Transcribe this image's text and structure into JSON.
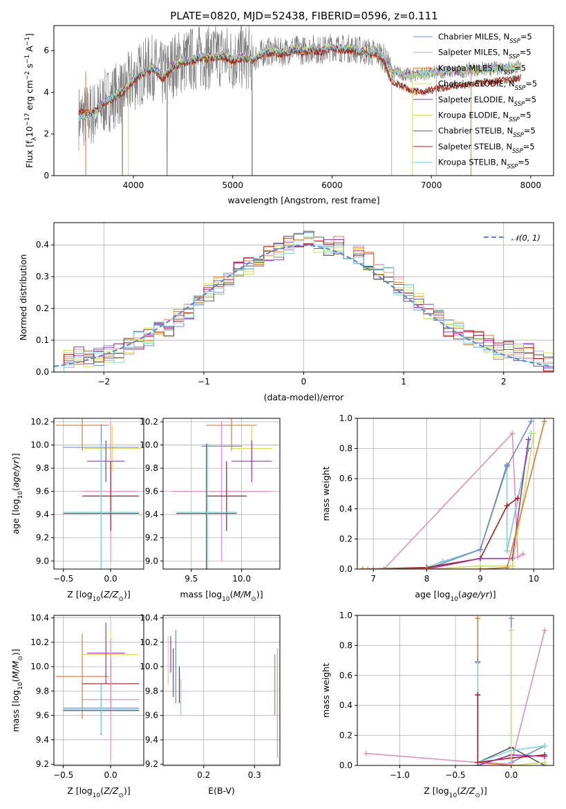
{
  "figure": {
    "title": "PLATE=0820, MJD=52438, FIBERID=0596, z=0.111"
  },
  "chart_data": [
    {
      "type": "line",
      "id": "spectrum",
      "title": "PLATE=0820, MJD=52438, FIBERID=0596, z=0.111",
      "xlabel": "wavelength [Angstrom, rest frame]",
      "ylabel": "Flux [f_λ10^-17 erg cm^-2 s^-1 A^-1]",
      "xlim": [
        3200,
        8230
      ],
      "ylim": [
        0,
        7.2
      ],
      "xticks": [
        4000,
        5000,
        6000,
        7000,
        8000
      ],
      "yticks": [
        0,
        2,
        4,
        6
      ],
      "grid": false,
      "legend_position": "top-right",
      "observed_color": "#808080",
      "series": [
        {
          "name": "Chabrier MILES, N_SSP=5",
          "color": "#6a8fd8"
        },
        {
          "name": "Salpeter MILES, N_SSP=5",
          "color": "#e58fba"
        },
        {
          "name": "Kroupa MILES, N_SSP=5",
          "color": "#e07a30"
        },
        {
          "name": "Chabrier ELODIE, N_SSP=5",
          "color": "#d9e04a"
        },
        {
          "name": "Salpeter ELODIE, N_SSP=5",
          "color": "#9b30b0"
        },
        {
          "name": "Kroupa ELODIE, N_SSP=5",
          "color": "#c8e060"
        },
        {
          "name": "Chabrier STELIB, N_SSP=5",
          "color": "#5a5a5a"
        },
        {
          "name": "Salpeter STELIB, N_SSP=5",
          "color": "#b01818"
        },
        {
          "name": "Kroupa STELIB, N_SSP=5",
          "color": "#7fd8e0"
        }
      ],
      "model_curve": {
        "x": [
          3450,
          3550,
          3650,
          3700,
          3800,
          3900,
          4000,
          4100,
          4200,
          4300,
          4400,
          4500,
          4600,
          4700,
          4800,
          4900,
          5000,
          5100,
          5200,
          5300,
          5400,
          5500,
          5600,
          5700,
          5800,
          5900,
          6000,
          6100,
          6200,
          6300,
          6400,
          6500,
          6600,
          6700,
          6800,
          6900,
          7000,
          7100,
          7200,
          7300,
          7400,
          7500,
          7600,
          7700,
          7800,
          7900
        ],
        "y": [
          2.8,
          2.9,
          3.1,
          3.5,
          3.8,
          4.1,
          4.6,
          5.0,
          5.2,
          4.8,
          5.3,
          5.5,
          5.6,
          5.7,
          5.7,
          5.8,
          5.6,
          5.7,
          5.6,
          5.9,
          6.0,
          5.9,
          6.1,
          6.0,
          6.1,
          6.0,
          6.2,
          6.1,
          6.1,
          6.0,
          5.9,
          5.8,
          5.0,
          4.9,
          4.8,
          4.9,
          4.9,
          5.0,
          5.0,
          5.0,
          5.1,
          5.1,
          5.1,
          5.2,
          5.2,
          5.2
        ],
        "y_alt": [
          3.1,
          3.0,
          3.2,
          3.4,
          3.7,
          4.0,
          4.5,
          4.9,
          5.1,
          4.6,
          5.2,
          5.4,
          5.5,
          5.6,
          5.6,
          5.7,
          5.5,
          5.6,
          5.5,
          5.8,
          5.9,
          5.8,
          6.0,
          5.9,
          6.0,
          5.9,
          6.1,
          6.0,
          6.0,
          5.9,
          5.8,
          5.7,
          4.5,
          4.3,
          4.1,
          4.0,
          4.1,
          4.2,
          4.3,
          4.3,
          4.4,
          4.5,
          4.5,
          4.6,
          4.6,
          4.7
        ]
      }
    },
    {
      "type": "line",
      "id": "residuals",
      "xlabel": "(data-model)/error",
      "ylabel": "Normed distribution",
      "xlim": [
        -2.5,
        2.5
      ],
      "ylim": [
        0,
        0.47
      ],
      "xticks": [
        -2,
        -1,
        0,
        1,
        2
      ],
      "yticks": [
        0.0,
        0.1,
        0.2,
        0.3,
        0.4
      ],
      "grid": true,
      "legend_position": "top-right",
      "reference": {
        "name": "𝒩(0, 1)",
        "color": "#5b8ad8"
      },
      "histogram": {
        "bin_edges": [
          -2.5,
          -2.4,
          -2.3,
          -2.2,
          -2.1,
          -2.0,
          -1.9,
          -1.8,
          -1.7,
          -1.6,
          -1.5,
          -1.4,
          -1.3,
          -1.2,
          -1.1,
          -1.0,
          -0.9,
          -0.8,
          -0.7,
          -0.6,
          -0.5,
          -0.4,
          -0.3,
          -0.2,
          -0.1,
          0.0,
          0.1,
          0.2,
          0.3,
          0.4,
          0.5,
          0.6,
          0.7,
          0.8,
          0.9,
          1.0,
          1.1,
          1.2,
          1.3,
          1.4,
          1.5,
          1.6,
          1.7,
          1.8,
          1.9,
          2.0,
          2.1,
          2.2,
          2.3,
          2.4,
          2.5
        ],
        "values": [
          0.02,
          0.04,
          0.05,
          0.04,
          0.05,
          0.06,
          0.06,
          0.08,
          0.1,
          0.11,
          0.13,
          0.14,
          0.17,
          0.19,
          0.22,
          0.25,
          0.27,
          0.29,
          0.32,
          0.33,
          0.35,
          0.37,
          0.38,
          0.4,
          0.41,
          0.42,
          0.4,
          0.39,
          0.4,
          0.38,
          0.37,
          0.35,
          0.32,
          0.3,
          0.27,
          0.25,
          0.22,
          0.19,
          0.17,
          0.14,
          0.13,
          0.11,
          0.1,
          0.09,
          0.07,
          0.07,
          0.06,
          0.06,
          0.04,
          0.03
        ]
      }
    },
    {
      "type": "scatter",
      "id": "age-vs-Z",
      "xlabel": "Z [log10(Z/Z⊙)]",
      "ylabel": "age [log10(age/yr)]",
      "xlim": [
        -0.6,
        0.35
      ],
      "ylim": [
        8.93,
        10.23
      ],
      "xticks": [
        -0.5,
        0.0
      ],
      "yticks": [
        9.0,
        9.2,
        9.4,
        9.6,
        9.8,
        10.0,
        10.2
      ],
      "grid": true,
      "points": [
        {
          "x": -0.3,
          "y": 10.17,
          "xerr": 0.28,
          "yerr": 0.22,
          "color": "#e07a30"
        },
        {
          "x": 0.02,
          "y": 9.97,
          "xerr": 0.3,
          "yerr": 0.2,
          "color": "#d9e04a"
        },
        {
          "x": -0.05,
          "y": 9.86,
          "xerr": 0.2,
          "yerr": 0.18,
          "color": "#9b30b0"
        },
        {
          "x": -0.1,
          "y": 9.98,
          "xerr": 0.4,
          "yerr": 0.2,
          "color": "#6a8fd8"
        },
        {
          "x": 0.0,
          "y": 9.6,
          "xerr": 0.3,
          "yerr": 0.6,
          "color": "#e58fba"
        },
        {
          "x": 0.0,
          "y": 9.56,
          "xerr": 0.3,
          "yerr": 0.3,
          "color": "#b01818"
        },
        {
          "x": -0.1,
          "y": 9.41,
          "xerr": 0.4,
          "yerr": 0.6,
          "color": "#5a5a5a"
        },
        {
          "x": -0.1,
          "y": 9.42,
          "xerr": 0.4,
          "yerr": 0.6,
          "color": "#7fd8e0"
        }
      ]
    },
    {
      "type": "scatter",
      "id": "age-vs-mass",
      "xlabel": "mass [log10(M/M⊙)]",
      "ylabel": "",
      "xlim": [
        9.22,
        10.38
      ],
      "ylim": [
        8.93,
        10.23
      ],
      "xticks": [
        9.5,
        10.0
      ],
      "yticks": [
        9.0,
        9.2,
        9.4,
        9.6,
        9.8,
        10.0,
        10.2
      ],
      "grid": true,
      "points": [
        {
          "x": 9.9,
          "y": 10.17,
          "xerr": 0.25,
          "yerr": 0.22,
          "color": "#e07a30"
        },
        {
          "x": 10.1,
          "y": 9.97,
          "xerr": 0.2,
          "yerr": 0.2,
          "color": "#d9e04a"
        },
        {
          "x": 10.1,
          "y": 9.86,
          "xerr": 0.2,
          "yerr": 0.18,
          "color": "#9b30b0"
        },
        {
          "x": 9.8,
          "y": 9.99,
          "xerr": 0.2,
          "yerr": 0.2,
          "color": "#6a8fd8"
        },
        {
          "x": 9.8,
          "y": 9.6,
          "xerr": 0.5,
          "yerr": 0.6,
          "color": "#e58fba"
        },
        {
          "x": 9.85,
          "y": 9.56,
          "xerr": 0.2,
          "yerr": 0.3,
          "color": "#b01818"
        },
        {
          "x": 9.65,
          "y": 9.41,
          "xerr": 0.3,
          "yerr": 0.6,
          "color": "#5a5a5a"
        },
        {
          "x": 9.66,
          "y": 9.42,
          "xerr": 0.3,
          "yerr": 0.6,
          "color": "#7fd8e0"
        }
      ]
    },
    {
      "type": "line",
      "id": "massweight-vs-age",
      "xlabel": "age [log10(age/yr)]",
      "ylabel": "mass weight",
      "xlim": [
        6.7,
        10.37
      ],
      "ylim": [
        0,
        1.0
      ],
      "xticks": [
        7,
        8,
        9,
        10
      ],
      "yticks": [
        0.0,
        0.2,
        0.4,
        0.6,
        0.8,
        1.0
      ],
      "grid": true,
      "series": [
        {
          "color": "#e58fba",
          "x": [
            6.9,
            7.2,
            9.6,
            9.7,
            9.8
          ],
          "y": [
            0.0,
            0.0,
            0.9,
            0.08,
            0.1
          ]
        },
        {
          "color": "#5a5a5a",
          "x": [
            7.0,
            8.0,
            8.3,
            9.0,
            9.5,
            9.5,
            9.9
          ],
          "y": [
            0.0,
            0.01,
            0.05,
            0.13,
            0.69,
            0.12,
            0.8
          ]
        },
        {
          "color": "#7fd8e0",
          "x": [
            7.0,
            8.0,
            8.3,
            9.0,
            9.5,
            9.5,
            9.95
          ],
          "y": [
            0.0,
            0.01,
            0.05,
            0.13,
            0.68,
            0.12,
            0.9
          ]
        },
        {
          "color": "#6a8fd8",
          "x": [
            7.0,
            8.0,
            9.0,
            9.5,
            9.95
          ],
          "y": [
            0.0,
            0.0,
            0.13,
            0.68,
            0.98
          ]
        },
        {
          "color": "#b01818",
          "x": [
            6.8,
            8.0,
            9.0,
            9.5,
            9.7
          ],
          "y": [
            0.0,
            0.01,
            0.07,
            0.42,
            0.47
          ]
        },
        {
          "color": "#9b30b0",
          "x": [
            6.8,
            8.0,
            9.0,
            9.6,
            9.9
          ],
          "y": [
            0.0,
            0.0,
            0.07,
            0.07,
            0.86
          ]
        },
        {
          "color": "#c8e060",
          "x": [
            6.8,
            8.0,
            9.0,
            9.6,
            10.0
          ],
          "y": [
            0.0,
            0.0,
            0.02,
            0.02,
            0.9
          ]
        },
        {
          "color": "#e07a30",
          "x": [
            6.8,
            8.0,
            9.0,
            9.5,
            10.2
          ],
          "y": [
            0.0,
            0.0,
            0.0,
            0.01,
            0.98
          ]
        }
      ]
    },
    {
      "type": "scatter",
      "id": "mass-vs-Z",
      "xlabel": "Z [log10(Z/Z⊙)]",
      "ylabel": "mass [log10(M/M⊙)]",
      "xlim": [
        -0.6,
        0.35
      ],
      "ylim": [
        9.19,
        10.42
      ],
      "xticks": [
        -0.5,
        0.0
      ],
      "yticks": [
        9.2,
        9.4,
        9.6,
        9.8,
        10.0,
        10.2,
        10.4
      ],
      "grid": true,
      "points": [
        {
          "x": -0.3,
          "y": 9.92,
          "xerr": 0.28,
          "yerr": 0.35,
          "color": "#e07a30"
        },
        {
          "x": 0.0,
          "y": 10.1,
          "xerr": 0.3,
          "yerr": 0.2,
          "color": "#d9e04a"
        },
        {
          "x": -0.05,
          "y": 10.11,
          "xerr": 0.2,
          "yerr": 0.25,
          "color": "#9b30b0"
        },
        {
          "x": 0.0,
          "y": 9.86,
          "xerr": 0.3,
          "yerr": 0.2,
          "color": "#b01818"
        },
        {
          "x": 0.0,
          "y": 9.73,
          "xerr": 0.3,
          "yerr": 0.5,
          "color": "#e58fba"
        },
        {
          "x": -0.1,
          "y": 9.66,
          "xerr": 0.4,
          "yerr": 0.2,
          "color": "#6a8fd8"
        },
        {
          "x": -0.1,
          "y": 9.64,
          "xerr": 0.4,
          "yerr": 0.2,
          "color": "#5a5a5a"
        },
        {
          "x": -0.1,
          "y": 9.65,
          "xerr": 0.4,
          "yerr": 0.2,
          "color": "#7fd8e0"
        }
      ]
    },
    {
      "type": "scatter",
      "id": "mass-vs-EBV",
      "xlabel": "E(B-V)",
      "ylabel": "",
      "xlim": [
        0.12,
        0.35
      ],
      "ylim": [
        9.19,
        10.42
      ],
      "xticks": [
        0.2,
        0.3
      ],
      "yticks": [
        9.2,
        9.4,
        9.6,
        9.8,
        10.0,
        10.2,
        10.4
      ],
      "grid": true,
      "points": [
        {
          "x": 0.13,
          "y": 10.05,
          "yerr": 0.2,
          "color": "#c8e060"
        },
        {
          "x": 0.135,
          "y": 10.1,
          "yerr": 0.15,
          "color": "#9b30b0"
        },
        {
          "x": 0.14,
          "y": 9.95,
          "yerr": 0.2,
          "color": "#5a5a5a"
        },
        {
          "x": 0.145,
          "y": 10.0,
          "yerr": 0.3,
          "color": "#6a8fd8"
        },
        {
          "x": 0.152,
          "y": 9.85,
          "yerr": 0.15,
          "color": "#b01818"
        },
        {
          "x": 0.155,
          "y": 9.75,
          "yerr": 0.15,
          "color": "#7fd8e0"
        },
        {
          "x": 0.34,
          "y": 9.85,
          "yerr": 0.25,
          "color": "#e07a30"
        },
        {
          "x": 0.345,
          "y": 9.7,
          "yerr": 0.45,
          "color": "#e58fba"
        },
        {
          "x": 0.35,
          "y": 9.85,
          "yerr": 0.3,
          "color": "#9b30b0"
        }
      ]
    },
    {
      "type": "line",
      "id": "massweight-vs-Z",
      "xlabel": "Z [log10(Z/Z⊙)]",
      "ylabel": "mass weight",
      "xlim": [
        -1.38,
        0.38
      ],
      "ylim": [
        0,
        1.0
      ],
      "xticks": [
        -1.0,
        -0.5,
        0.0
      ],
      "yticks": [
        0.0,
        0.2,
        0.4,
        0.6,
        0.8,
        1.0
      ],
      "grid": true,
      "series": [
        {
          "color": "#e58fba",
          "x": [
            -1.3,
            -0.3,
            0.0,
            0.3
          ],
          "y": [
            0.08,
            0.02,
            0.01,
            0.9
          ]
        },
        {
          "color": "#e07a30",
          "x": [
            -0.3,
            -0.3,
            0.0
          ],
          "y": [
            0.98,
            0.02,
            0.0
          ]
        },
        {
          "color": "#6a8fd8",
          "x": [
            0.0,
            0.0,
            0.3
          ],
          "y": [
            0.98,
            0.02,
            0.13
          ]
        },
        {
          "color": "#5a5a5a",
          "x": [
            -0.3,
            -0.3,
            0.0,
            0.3
          ],
          "y": [
            0.69,
            0.02,
            0.12,
            0.0
          ]
        },
        {
          "color": "#7fd8e0",
          "x": [
            -0.3,
            -0.3,
            0.0,
            0.3
          ],
          "y": [
            0.68,
            0.02,
            0.1,
            0.13
          ]
        },
        {
          "color": "#b01818",
          "x": [
            -0.3,
            -0.3,
            0.0,
            0.3
          ],
          "y": [
            0.47,
            0.02,
            0.05,
            0.07
          ]
        },
        {
          "color": "#9b30b0",
          "x": [
            -0.3,
            0.0,
            0.3
          ],
          "y": [
            0.0,
            0.07,
            0.06
          ]
        },
        {
          "color": "#c8e060",
          "x": [
            0.0,
            0.0,
            0.3
          ],
          "y": [
            0.9,
            0.0,
            0.02
          ]
        }
      ]
    }
  ]
}
